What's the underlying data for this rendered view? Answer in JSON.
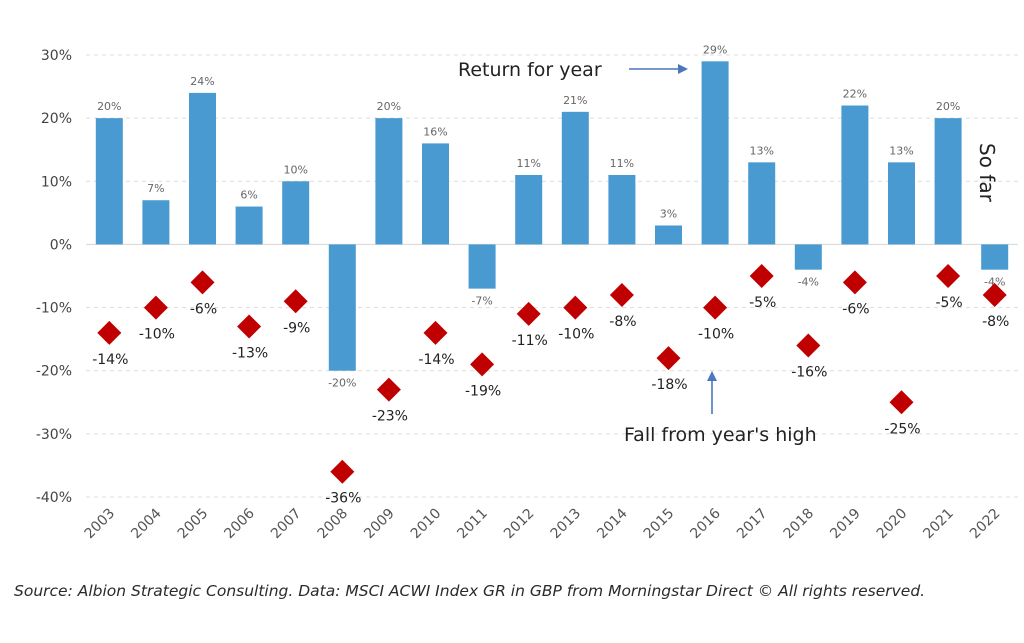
{
  "chart_data": {
    "type": "bar",
    "categories": [
      "2003",
      "2004",
      "2005",
      "2006",
      "2007",
      "2008",
      "2009",
      "2010",
      "2011",
      "2012",
      "2013",
      "2014",
      "2015",
      "2016",
      "2017",
      "2018",
      "2019",
      "2020",
      "2021",
      "2022"
    ],
    "series": [
      {
        "values": [
          20,
          7,
          24,
          6,
          10,
          -20,
          20,
          16,
          -7,
          11,
          21,
          11,
          3,
          29,
          13,
          -4,
          22,
          13,
          20,
          -4
        ],
        "labels": [
          "20%",
          "7%",
          "24%",
          "6%",
          "10%",
          "-20%",
          "20%",
          "16%",
          "-7%",
          "11%",
          "21%",
          "11%",
          "3%",
          "29%",
          "13%",
          "-4%",
          "22%",
          "13%",
          "20%",
          "-4%"
        ],
        "color": "#4a9ad2",
        "mark": "bar"
      },
      {
        "values": [
          -14,
          -10,
          -6,
          -13,
          -9,
          -36,
          -23,
          -14,
          -19,
          -11,
          -10,
          -8,
          -18,
          -10,
          -5,
          -16,
          -6,
          -25,
          -5,
          -8
        ],
        "labels": [
          "-14%",
          "-10%",
          "-6%",
          "-13%",
          "-9%",
          "-36%",
          "-23%",
          "-14%",
          "-19%",
          "-11%",
          "-10%",
          "-8%",
          "-18%",
          "-10%",
          "-5%",
          "-16%",
          "-6%",
          "-25%",
          "-5%",
          "-8%"
        ],
        "color": "#c00000",
        "mark": "diamond"
      }
    ],
    "ylim": [
      -40,
      30
    ],
    "yticks": [
      -40,
      -30,
      -20,
      -10,
      0,
      10,
      20,
      30
    ],
    "ytick_labels": [
      "-40%",
      "-30%",
      "-20%",
      "-10%",
      "0%",
      "10%",
      "20%",
      "30%"
    ],
    "grid": "horizontal dashed",
    "annotations": {
      "return_label": "Return for year",
      "fall_label": "Fall from year's high",
      "so_far": "So far"
    }
  },
  "source": "Source: Albion Strategic Consulting. Data: MSCI ACWI Index GR in GBP from Morningstar Direct © All rights reserved."
}
